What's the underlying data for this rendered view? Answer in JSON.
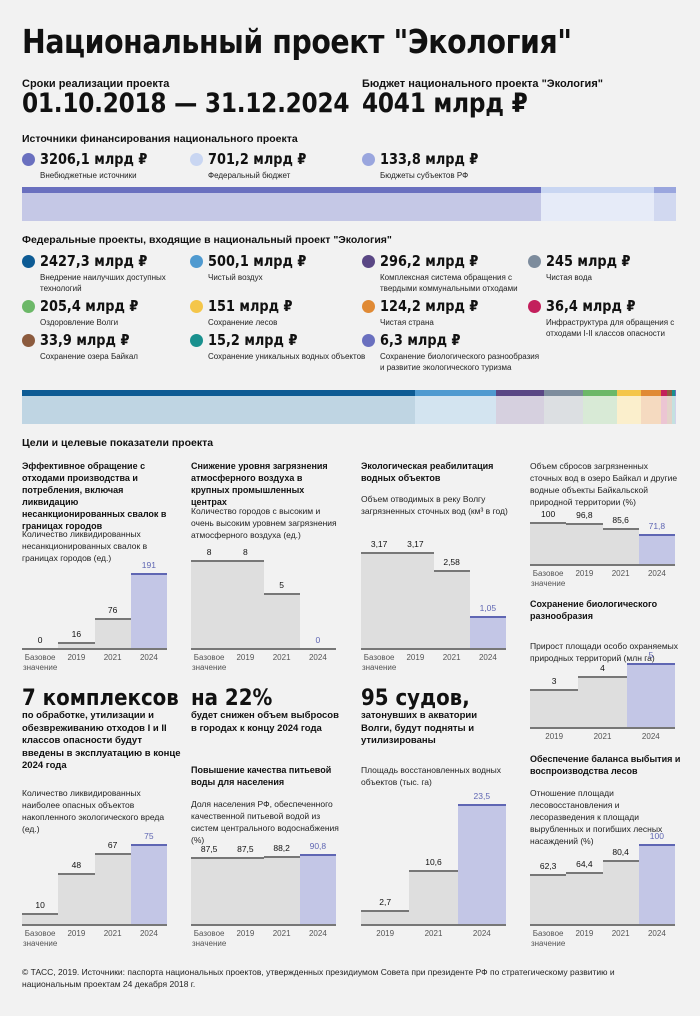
{
  "header": {
    "title": "Национальный проект \"Экология\"",
    "period_label": "Сроки реализации проекта",
    "period_value": "01.10.2018 — 31.12.2024",
    "budget_label": "Бюджет национального проекта \"Экология\"",
    "budget_value": "4041 млрд ₽"
  },
  "funding": {
    "heading": "Источники финансирования национального проекта",
    "items": [
      {
        "value": "3206,1 млрд ₽",
        "label": "Внебюджетные источники",
        "color": "#6a70bf",
        "light": "#c5c8e6",
        "amount": 3206.1
      },
      {
        "value": "701,2 млрд ₽",
        "label": "Федеральный бюджет",
        "color": "#c9d6f2",
        "light": "#e6ebf8",
        "amount": 701.2
      },
      {
        "value": "133,8 млрд ₽",
        "label": "Бюджеты субъектов РФ",
        "color": "#9aa6de",
        "light": "#d1d8f0",
        "amount": 133.8
      }
    ]
  },
  "federal": {
    "heading": "Федеральные проекты, входящие в национальный проект \"Экология\"",
    "items": [
      {
        "value": "2427,3 млрд ₽",
        "label": "Внедрение наилучших доступных технологий",
        "color": "#0d5b94",
        "light": "#bfd5e3",
        "amount": 2427.3
      },
      {
        "value": "500,1 млрд ₽",
        "label": "Чистый воздух",
        "color": "#4f9ad0",
        "light": "#d3e4f0",
        "amount": 500.1
      },
      {
        "value": "296,2 млрд ₽",
        "label": "Комплексная система обращения с твердыми коммунальными отходами",
        "color": "#5a4785",
        "light": "#d6d0df",
        "amount": 296.2
      },
      {
        "value": "245 млрд ₽",
        "label": "Чистая вода",
        "color": "#7d8c9d",
        "light": "#dcdfe2",
        "amount": 245
      },
      {
        "value": "205,4 млрд ₽",
        "label": "Оздоровление Волги",
        "color": "#6cb868",
        "light": "#d8ead6",
        "amount": 205.4
      },
      {
        "value": "151 млрд ₽",
        "label": "Сохранение лесов",
        "color": "#f4c64a",
        "light": "#fbefcc",
        "amount": 151
      },
      {
        "value": "124,2 млрд ₽",
        "label": "Чистая страна",
        "color": "#e08a35",
        "light": "#f5dac0",
        "amount": 124.2
      },
      {
        "value": "36,4 млрд ₽",
        "label": "Инфраструктура для обращения с отходами I-II классов опасности",
        "color": "#c31f5c",
        "light": "#ecc5d3",
        "amount": 36.4
      },
      {
        "value": "33,9 млрд ₽",
        "label": "Сохранение озера Байкал",
        "color": "#8c5b3e",
        "light": "#e3d3c9",
        "amount": 33.9
      },
      {
        "value": "15,2 млрд ₽",
        "label": "Сохранение уникальных водных объектов",
        "color": "#19908e",
        "light": "#c4e1e0",
        "amount": 15.2
      },
      {
        "value": "6,3 млрд ₽",
        "label": "Сохранение биологического разнообразия и развитие экологического туризма",
        "color": "#6a70bf",
        "light": "#d1d3ec",
        "amount": 6.3
      }
    ]
  },
  "goals": {
    "heading": "Цели и целевые показатели проекта",
    "headlines": [
      {
        "big": "7 комплексов",
        "text": "по обработке, утилизации и обезвреживанию отходов I и II классов опасности будут введены в эксплуатацию в конце 2024 года"
      },
      {
        "big": "на 22%",
        "text": "будет снижен объем выбросов в городах к концу 2024 года"
      },
      {
        "big": "95 судов,",
        "text": "затонувших в акватории Волги, будут подняты и утилизированы"
      }
    ],
    "sections": {
      "waste": "Эффективное обращение с отходами производства и потребления, включая ликвидацию несанкционированных свалок в границах городов",
      "air": "Снижение уровня загрязнения атмосферного воздуха в крупных промышленных центрах",
      "water_rehab": "Экологическая реабилитация водных объектов",
      "biodiversity": "Сохранение биологического разнообразия",
      "drinking": "Повышение качества питьевой воды для населения",
      "forest": "Обеспечение баланса выбытия и воспроизводства лесов"
    },
    "tick_base": "Базовое значение"
  },
  "chart_data": [
    {
      "type": "bar",
      "title": "Количество ликвидированных несанкционированных свалок в границах городов (ед.)",
      "categories": [
        "Базовое значение",
        "2019",
        "2021",
        "2024"
      ],
      "values": [
        0,
        16,
        76,
        191
      ],
      "labels": [
        "0",
        "16",
        "76",
        "191"
      ]
    },
    {
      "type": "bar",
      "title": "Количество городов с высоким и очень высоким уровнем загрязнения атмосферного воздуха (ед.)",
      "categories": [
        "Базовое значение",
        "2019",
        "2021",
        "2024"
      ],
      "values": [
        8,
        8,
        5,
        0
      ],
      "labels": [
        "8",
        "8",
        "5",
        "0"
      ]
    },
    {
      "type": "bar",
      "title": "Объем отводимых в реку Волгу загрязненных сточных вод (км³ в год)",
      "categories": [
        "Базовое значение",
        "2019",
        "2021",
        "2024"
      ],
      "values": [
        3.17,
        3.17,
        2.58,
        1.05
      ],
      "labels": [
        "3,17",
        "3,17",
        "2,58",
        "1,05"
      ]
    },
    {
      "type": "bar",
      "title": "Объем сбросов загрязненных сточных вод в озеро Байкал и другие водные объекты Байкальской природной территории (%)",
      "categories": [
        "Базовое значение",
        "2019",
        "2021",
        "2024"
      ],
      "values": [
        100,
        96.8,
        85.6,
        71.8
      ],
      "labels": [
        "100",
        "96,8",
        "85,6",
        "71,8"
      ]
    },
    {
      "type": "bar",
      "title": "Прирост площади особо охраняемых природных территорий (млн га)",
      "categories": [
        "2019",
        "2021",
        "2024"
      ],
      "values": [
        3,
        4,
        5
      ],
      "labels": [
        "3",
        "4",
        "5"
      ]
    },
    {
      "type": "bar",
      "title": "Количество ликвидированных наиболее опасных объектов накопленного экологического вреда (ед.)",
      "categories": [
        "Базовое значение",
        "2019",
        "2021",
        "2024"
      ],
      "values": [
        10,
        48,
        67,
        75
      ],
      "labels": [
        "10",
        "48",
        "67",
        "75"
      ]
    },
    {
      "type": "bar",
      "title": "Доля населения РФ, обеспеченного качественной питьевой водой из систем центрального водоснабжения (%)",
      "categories": [
        "Базовое значение",
        "2019",
        "2021",
        "2024"
      ],
      "values": [
        87.5,
        87.5,
        88.2,
        90.8
      ],
      "labels": [
        "87,5",
        "87,5",
        "88,2",
        "90,8"
      ]
    },
    {
      "type": "bar",
      "title": "Площадь восстановленных водных объектов (тыс. га)",
      "categories": [
        "2019",
        "2021",
        "2024"
      ],
      "values": [
        2.7,
        10.6,
        23.5
      ],
      "labels": [
        "2,7",
        "10,6",
        "23,5"
      ]
    },
    {
      "type": "bar",
      "title": "Отношение площади лесовосстановления и лесоразведения к площади вырубленных и погибших лесных насаждений (%)",
      "categories": [
        "Базовое значение",
        "2019",
        "2021",
        "2024"
      ],
      "values": [
        62.3,
        64.4,
        80.4,
        100
      ],
      "labels": [
        "62,3",
        "64,4",
        "80,4",
        "100"
      ]
    }
  ],
  "footer": {
    "text": "© ТАСС, 2019. Источники: паспорта национальных проектов, утвержденных президиумом Совета при президенте РФ по стратегическому развитию и национальным проектам 24 декабря 2018 г."
  }
}
